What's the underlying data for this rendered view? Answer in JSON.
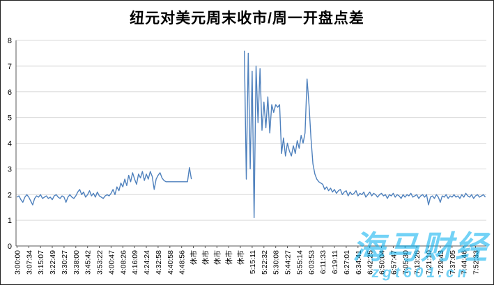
{
  "watermark": {
    "brand": "海马财经",
    "url": "zgt601.cn",
    "color": "#00AEEF"
  },
  "chart_data": {
    "type": "line",
    "title": "纽元对美元周末收市/周一开盘点差",
    "xlabel": "",
    "ylabel": "",
    "ylim": [
      0,
      8
    ],
    "yticks": [
      0,
      1,
      2,
      3,
      4,
      5,
      6,
      7,
      8
    ],
    "grid": true,
    "legend": "none",
    "line_color": "#4F81BD",
    "gridline_color": "#D9D9D9",
    "axis_color": "#595959",
    "label_every": 6,
    "x_tick_labels": [
      "3:00:00",
      "3:07:34",
      "3:15:07",
      "3:22:49",
      "3:30:27",
      "3:38:00",
      "3:45:42",
      "3:53:22",
      "4:00:47",
      "4:08:26",
      "4:16:09",
      "4:24:24",
      "4:32:58",
      "4:40:58",
      "4:48:56",
      "休市",
      "休市",
      "休市",
      "休市",
      "休市",
      "5:15:11",
      "5:22:32",
      "5:30:08",
      "5:44:27",
      "5:55:14",
      "6:03:53",
      "6:11:33",
      "6:19:11",
      "6:27:01",
      "6:34:41",
      "6:42:25",
      "6:50:04",
      "6:57:47",
      "7:05:30",
      "7:13:26",
      "7:21:10",
      "7:29:43",
      "7:37:05",
      "7:44:46",
      "7:52:33"
    ],
    "values": [
      1.9,
      1.95,
      1.8,
      1.7,
      1.9,
      2.0,
      1.9,
      1.75,
      1.6,
      1.85,
      1.95,
      1.9,
      2.0,
      1.85,
      1.9,
      1.95,
      1.85,
      1.9,
      1.8,
      1.95,
      2.0,
      1.9,
      1.85,
      1.95,
      1.9,
      1.7,
      1.9,
      2.0,
      1.9,
      1.85,
      1.95,
      2.1,
      2.2,
      2.0,
      2.1,
      1.9,
      2.0,
      2.15,
      1.95,
      2.05,
      1.9,
      2.1,
      1.95,
      1.9,
      1.85,
      1.95,
      2.0,
      1.95,
      2.05,
      2.2,
      2.0,
      2.3,
      2.15,
      2.45,
      2.3,
      2.6,
      2.35,
      2.75,
      2.5,
      2.85,
      2.6,
      2.4,
      2.8,
      2.65,
      2.9,
      2.55,
      2.8,
      2.6,
      2.9,
      2.7,
      2.2,
      2.6,
      2.75,
      2.85,
      2.65,
      2.55,
      2.5,
      2.5,
      2.5,
      2.5,
      2.5,
      2.5,
      2.5,
      2.5,
      2.5,
      2.5,
      2.5,
      2.5,
      3.05,
      2.6,
      null,
      null,
      null,
      null,
      null,
      null,
      null,
      null,
      null,
      null,
      null,
      null,
      null,
      null,
      null,
      null,
      null,
      null,
      null,
      null,
      null,
      null,
      null,
      null,
      null,
      null,
      7.6,
      2.6,
      7.5,
      3.0,
      6.8,
      1.1,
      7.0,
      4.8,
      6.9,
      4.5,
      5.6,
      4.6,
      5.8,
      4.4,
      5.5,
      5.2,
      5.5,
      5.4,
      5.5,
      3.6,
      4.2,
      3.5,
      4.0,
      3.7,
      3.5,
      3.9,
      3.6,
      4.1,
      3.8,
      4.3,
      4.0,
      4.4,
      6.5,
      5.5,
      4.2,
      3.2,
      2.8,
      2.6,
      2.5,
      2.45,
      2.4,
      2.2,
      2.3,
      2.15,
      2.25,
      2.1,
      2.2,
      2.05,
      2.15,
      2.2,
      2.0,
      2.1,
      2.15,
      1.95,
      2.1,
      2.0,
      2.05,
      2.15,
      1.95,
      2.05,
      2.0,
      2.1,
      1.9,
      2.0,
      2.1,
      1.95,
      2.05,
      2.0,
      1.9,
      2.0,
      2.05,
      1.95,
      2.0,
      1.85,
      2.0,
      1.95,
      2.05,
      1.9,
      2.0,
      1.95,
      1.85,
      2.0,
      1.9,
      2.0,
      1.95,
      2.05,
      1.9,
      1.95,
      2.0,
      1.85,
      1.95,
      2.0,
      1.9,
      2.0,
      1.6,
      1.9,
      1.95,
      1.85,
      2.0,
      1.9,
      1.7,
      1.95,
      1.9,
      2.0,
      1.85,
      1.95,
      1.9,
      2.0,
      1.9,
      1.95,
      1.85,
      2.0,
      1.9,
      2.05,
      1.95,
      1.9,
      2.0,
      1.85,
      1.95,
      2.0,
      1.9,
      1.95,
      2.0,
      1.9
    ]
  }
}
